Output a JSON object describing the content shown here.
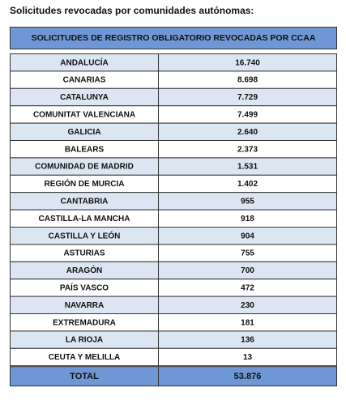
{
  "heading": "Solicitudes revocadas por comunidades autónomas:",
  "table": {
    "title": "SOLICITUDES DE REGISTRO OBLIGATORIO REVOCADAS POR CCAA",
    "rows": [
      [
        "ANDALUCÍA",
        "16.740"
      ],
      [
        "CANARIAS",
        "8.698"
      ],
      [
        "CATALUNYA",
        "7.729"
      ],
      [
        "COMUNITAT VALENCIANA",
        "7.499"
      ],
      [
        "GALICIA",
        "2.640"
      ],
      [
        "BALEARS",
        "2.373"
      ],
      [
        "COMUNIDAD DE MADRID",
        "1.531"
      ],
      [
        "REGIÓN DE MURCIA",
        "1.402"
      ],
      [
        "CANTABRIA",
        "955"
      ],
      [
        "CASTILLA-LA MANCHA",
        "918"
      ],
      [
        "CASTILLA Y LEÓN",
        "904"
      ],
      [
        "ASTURIAS",
        "755"
      ],
      [
        "ARAGÓN",
        "700"
      ],
      [
        "PAÍS VASCO",
        "472"
      ],
      [
        "NAVARRA",
        "230"
      ],
      [
        "EXTREMADURA",
        "181"
      ],
      [
        "LA RIOJA",
        "136"
      ],
      [
        "CEUTA Y MELILLA",
        "13"
      ]
    ],
    "total": [
      "TOTAL",
      "53.876"
    ]
  }
}
